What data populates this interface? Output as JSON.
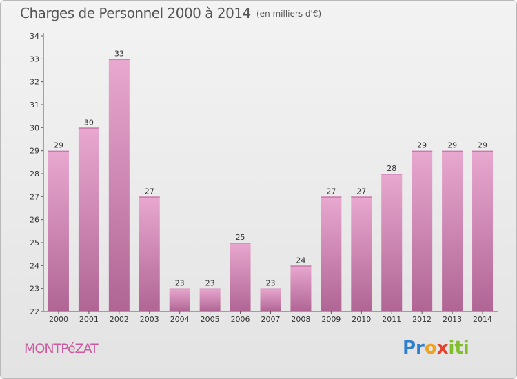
{
  "header": {
    "title": "Charges de Personnel 2000 à 2014",
    "subtitle": "(en milliers d'€)"
  },
  "footer": {
    "commune": "MONTPéZAT",
    "logo": "Proxiti"
  },
  "colors": {
    "bar_light": "#e8a8cf",
    "bar_dark": "#b06594",
    "title": "#555555",
    "commune": "#cc5a9f"
  },
  "chart_data": {
    "type": "bar",
    "title": "Charges de Personnel 2000 à 2014",
    "subtitle": "(en milliers d'€)",
    "categories": [
      "2000",
      "2001",
      "2002",
      "2003",
      "2004",
      "2005",
      "2006",
      "2007",
      "2008",
      "2009",
      "2010",
      "2011",
      "2012",
      "2013",
      "2014"
    ],
    "values": [
      29,
      30,
      33,
      27,
      23,
      23,
      25,
      23,
      24,
      27,
      27,
      28,
      29,
      29,
      29
    ],
    "ylim": [
      22,
      34
    ],
    "yticks": [
      22,
      23,
      24,
      25,
      26,
      27,
      28,
      29,
      30,
      31,
      32,
      33,
      34
    ],
    "grid": false,
    "legend": "none",
    "data_labels": true
  }
}
